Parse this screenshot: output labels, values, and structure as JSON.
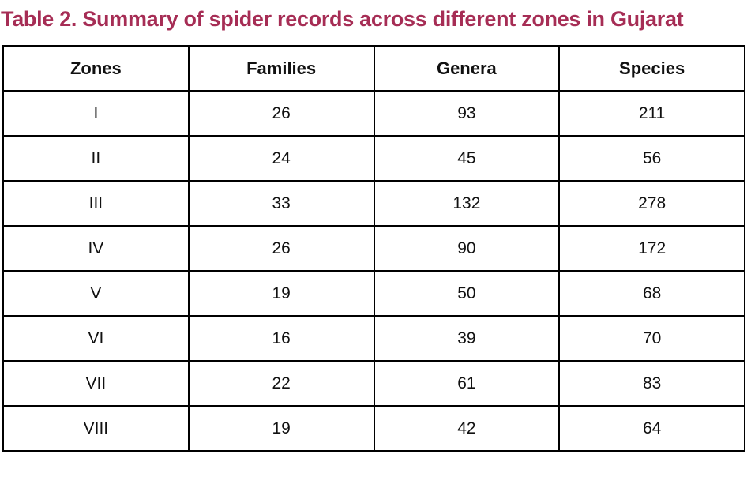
{
  "title": "Table 2. Summary of spider records across different zones in Gujarat",
  "colors": {
    "title_text": "#A62D55",
    "table_border": "#000000",
    "cell_text": "#111111",
    "background": "#FFFFFF"
  },
  "chart_data": {
    "type": "table",
    "title": "Table 2. Summary of spider records across different zones in Gujarat",
    "columns": [
      "Zones",
      "Families",
      "Genera",
      "Species"
    ],
    "rows": [
      [
        "I",
        "26",
        "93",
        "211"
      ],
      [
        "II",
        "24",
        "45",
        "56"
      ],
      [
        "III",
        "33",
        "132",
        "278"
      ],
      [
        "IV",
        "26",
        "90",
        "172"
      ],
      [
        "V",
        "19",
        "50",
        "68"
      ],
      [
        "VI",
        "16",
        "39",
        "70"
      ],
      [
        "VII",
        "22",
        "61",
        "83"
      ],
      [
        "VIII",
        "19",
        "42",
        "64"
      ]
    ]
  }
}
